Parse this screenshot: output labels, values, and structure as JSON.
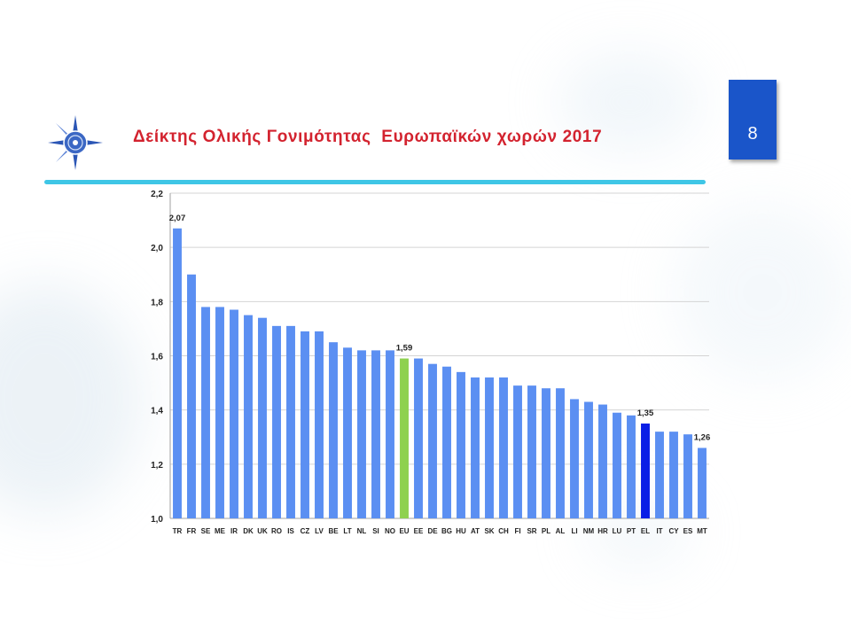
{
  "slide": {
    "title": "Δείκτης Ολικής Γονιμότητας  Ευρωπαϊκών χωρών 2017",
    "page_number": "8"
  },
  "colors": {
    "bar": "#5b8ff2",
    "highlight_eu": "#8ed14f",
    "highlight_el": "#0a1ee6",
    "title": "#d3232f",
    "accent_rule": "#3fc6e6",
    "page_box": "#1a55c9"
  },
  "chart_data": {
    "type": "bar",
    "title": "",
    "xlabel": "",
    "ylabel": "",
    "ylim": [
      1.0,
      2.2
    ],
    "yticks": [
      "1,0",
      "1,2",
      "1,4",
      "1,6",
      "1,8",
      "2,0",
      "2,2"
    ],
    "grid": true,
    "categories": [
      "TR",
      "FR",
      "SE",
      "ME",
      "IR",
      "DK",
      "UK",
      "RO",
      "IS",
      "CZ",
      "LV",
      "BE",
      "LT",
      "NL",
      "SI",
      "NO",
      "EU",
      "EE",
      "DE",
      "BG",
      "HU",
      "AT",
      "SK",
      "CH",
      "FI",
      "SR",
      "PL",
      "AL",
      "LI",
      "NM",
      "HR",
      "LU",
      "PT",
      "EL",
      "IT",
      "CY",
      "ES",
      "MT"
    ],
    "values": [
      2.07,
      1.9,
      1.78,
      1.78,
      1.77,
      1.75,
      1.74,
      1.71,
      1.71,
      1.69,
      1.69,
      1.65,
      1.63,
      1.62,
      1.62,
      1.62,
      1.59,
      1.59,
      1.57,
      1.56,
      1.54,
      1.52,
      1.52,
      1.52,
      1.49,
      1.49,
      1.48,
      1.48,
      1.44,
      1.43,
      1.42,
      1.39,
      1.38,
      1.35,
      1.32,
      1.32,
      1.31,
      1.26
    ],
    "highlights": {
      "EU": "#8ed14f",
      "EL": "#0a1ee6"
    },
    "data_labels": [
      {
        "category": "TR",
        "text": "2,07"
      },
      {
        "category": "EU",
        "text": "1,59"
      },
      {
        "category": "EL",
        "text": "1,35"
      },
      {
        "category": "MT",
        "text": "1,26"
      }
    ]
  }
}
